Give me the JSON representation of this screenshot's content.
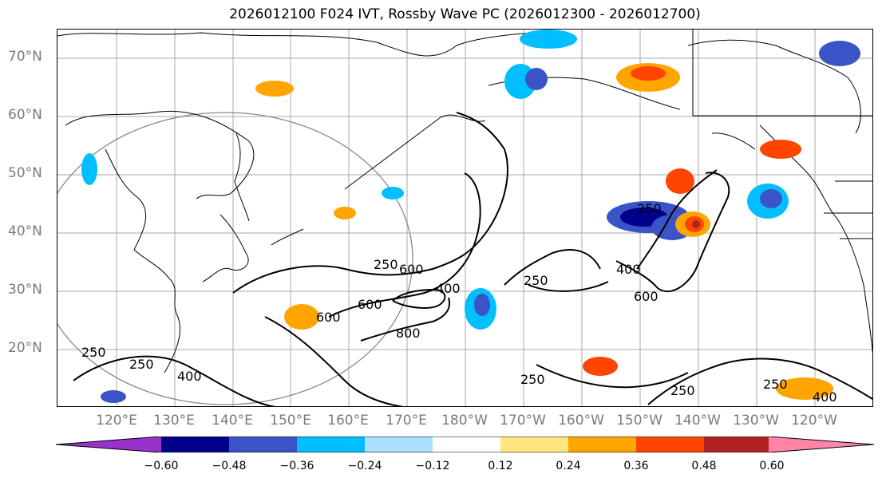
{
  "title": "2026012100 F024 IVT, Rossby Wave PC (2026012300 - 2026012700)",
  "latitude_labels": [
    "70°N",
    "60°N",
    "50°N",
    "40°N",
    "30°N",
    "20°N"
  ],
  "longitude_labels": [
    "120°E",
    "130°E",
    "140°E",
    "150°E",
    "160°E",
    "170°E",
    "180°W",
    "170°W",
    "160°W",
    "150°W",
    "140°W",
    "130°W",
    "120°W"
  ],
  "colorbar": {
    "ticks": [
      "−0.60",
      "−0.48",
      "−0.36",
      "−0.24",
      "−0.12",
      "0.12",
      "0.24",
      "0.36",
      "0.48",
      "0.60"
    ],
    "colors": [
      "#9932CC",
      "#00008B",
      "#3A54C8",
      "#00BFFF",
      "#ADDFFF",
      "#FFFFFF",
      "#FFE680",
      "#FFA500",
      "#FF4500",
      "#B22222",
      "#FF85A8"
    ]
  },
  "ivt_contour_labels": [
    "250",
    "250",
    "400",
    "250",
    "600",
    "600",
    "800",
    "400",
    "600",
    "250",
    "250",
    "400",
    "600",
    "250",
    "250",
    "250",
    "400"
  ]
}
